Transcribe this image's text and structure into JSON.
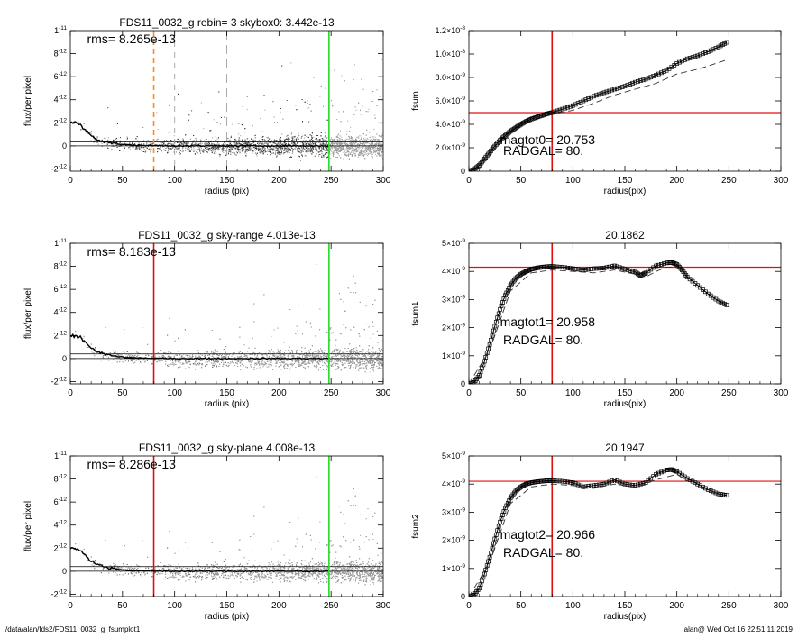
{
  "footer": {
    "path": "/data/alan/fds2/FDS11_0032_g_fsumplot1",
    "user_time": "alan@  Wed Oct 16 22:51:11 2019"
  },
  "colors": {
    "red": "#e01010",
    "green": "#22dd22",
    "orange": "#ff8c1a",
    "gray_dots": "#9a9a9a",
    "dark_dots": "#3a3a3a"
  },
  "chart_data": [
    {
      "id": "profile-1",
      "type": "scatter",
      "title": "FDS11_0032_g rebin= 3    skybox0:  3.442e-13",
      "xlabel": "radius (pix)",
      "ylabel": "flux/per pixel",
      "xlim": [
        0,
        300
      ],
      "ylim": [
        -2.2e-12,
        1e-11
      ],
      "xticks": [
        0,
        50,
        100,
        150,
        200,
        250,
        300
      ],
      "yticks": [
        {
          "v": -2e-12,
          "m": "-2",
          "e": "-12"
        },
        {
          "v": 0,
          "m": "0",
          "e": ""
        },
        {
          "v": 2e-12,
          "m": "2",
          "e": "-12"
        },
        {
          "v": 4e-12,
          "m": "4",
          "e": "-12"
        },
        {
          "v": 6e-12,
          "m": "6",
          "e": "-12"
        },
        {
          "v": 8e-12,
          "m": "8",
          "e": "-12"
        },
        {
          "v": 1e-11,
          "m": "1",
          "e": "-11"
        }
      ],
      "annotation": "rms= 8.265e-13",
      "hlines": [
        0,
        3.442e-13
      ],
      "vlines": [
        {
          "x": 80,
          "color": "#ff8c1a",
          "dash": "6,4",
          "width": 1.6
        },
        {
          "x": 100,
          "color": "#aaaaaa",
          "dash": "6,6",
          "width": 1
        },
        {
          "x": 150,
          "color": "#aaaaaa",
          "dash": "10,6",
          "width": 1
        },
        {
          "x": 248,
          "color": "#22dd22",
          "dash": "",
          "width": 1.6
        }
      ],
      "profile": [
        [
          0,
          2e-12
        ],
        [
          5,
          2e-12
        ],
        [
          10,
          1.8e-12
        ],
        [
          15,
          1.3e-12
        ],
        [
          20,
          9e-13
        ],
        [
          25,
          6e-13
        ],
        [
          30,
          4.5e-13
        ],
        [
          40,
          2.5e-13
        ],
        [
          50,
          1.2e-13
        ],
        [
          60,
          6e-14
        ],
        [
          80,
          2e-14
        ],
        [
          100,
          0
        ],
        [
          150,
          0
        ],
        [
          200,
          0
        ],
        [
          248,
          0
        ]
      ],
      "scatter_style": "mixed"
    },
    {
      "id": "fsum-0",
      "type": "line",
      "title": "",
      "xlabel": "radius(pix)",
      "ylabel": "fsum",
      "xlim": [
        0,
        300
      ],
      "ylim": [
        0,
        1.2e-08
      ],
      "xticks": [
        0,
        50,
        100,
        150,
        200,
        250,
        300
      ],
      "yticks": [
        {
          "v": 0,
          "m": "0",
          "e": ""
        },
        {
          "v": 2e-09,
          "m": "2.0×10",
          "e": "-9"
        },
        {
          "v": 4e-09,
          "m": "4.0×10",
          "e": "-9"
        },
        {
          "v": 6e-09,
          "m": "6.0×10",
          "e": "-9"
        },
        {
          "v": 8e-09,
          "m": "8.0×10",
          "e": "-9"
        },
        {
          "v": 1e-08,
          "m": "1.0×10",
          "e": "-8"
        },
        {
          "v": 1.2e-08,
          "m": "1.2×10",
          "e": "-8"
        }
      ],
      "annotations": [
        "magtot0=  20.753",
        "RADGAL=     80."
      ],
      "crosshair": {
        "x": 80,
        "y": 5e-09
      },
      "series": [
        {
          "style": "squares",
          "x": [
            0,
            5,
            10,
            15,
            20,
            25,
            30,
            35,
            40,
            45,
            50,
            55,
            60,
            65,
            70,
            75,
            80,
            90,
            100,
            110,
            120,
            130,
            140,
            150,
            160,
            170,
            180,
            190,
            200,
            210,
            220,
            230,
            240,
            248
          ],
          "y": [
            0,
            1.5e-10,
            5e-10,
            1.05e-09,
            1.6e-09,
            2.15e-09,
            2.65e-09,
            3.05e-09,
            3.4e-09,
            3.7e-09,
            4e-09,
            4.25e-09,
            4.45e-09,
            4.6e-09,
            4.75e-09,
            4.9e-09,
            5e-09,
            5.3e-09,
            5.6e-09,
            6e-09,
            6.4e-09,
            6.7e-09,
            7e-09,
            7.25e-09,
            7.6e-09,
            7.85e-09,
            8.2e-09,
            8.6e-09,
            9.2e-09,
            9.6e-09,
            9.85e-09,
            1.02e-08,
            1.06e-08,
            1.1e-08
          ]
        },
        {
          "style": "dashed",
          "x": [
            0,
            20,
            40,
            60,
            80,
            100,
            120,
            140,
            160,
            180,
            200,
            220,
            248
          ],
          "y": [
            0,
            1.5e-09,
            3.3e-09,
            4.3e-09,
            4.85e-09,
            5.2e-09,
            5.8e-09,
            6.5e-09,
            7e-09,
            7.5e-09,
            8.3e-09,
            8.7e-09,
            9.5e-09
          ]
        }
      ]
    },
    {
      "id": "profile-2",
      "type": "scatter",
      "title": "FDS11_0032_g sky-range  4.013e-13",
      "xlabel": "radius (pix)",
      "ylabel": "flux/per pixel",
      "xlim": [
        0,
        300
      ],
      "ylim": [
        -2.2e-12,
        1e-11
      ],
      "xticks": [
        0,
        50,
        100,
        150,
        200,
        250,
        300
      ],
      "yticks": [
        {
          "v": -2e-12,
          "m": "-2",
          "e": "-12"
        },
        {
          "v": 0,
          "m": "0",
          "e": ""
        },
        {
          "v": 2e-12,
          "m": "2",
          "e": "-12"
        },
        {
          "v": 4e-12,
          "m": "4",
          "e": "-12"
        },
        {
          "v": 6e-12,
          "m": "6",
          "e": "-12"
        },
        {
          "v": 8e-12,
          "m": "8",
          "e": "-12"
        },
        {
          "v": 1e-11,
          "m": "1",
          "e": "-11"
        }
      ],
      "annotation": "rms= 8.183e-13",
      "hlines": [
        0,
        4.013e-13
      ],
      "vlines": [
        {
          "x": 80,
          "color": "#e01010",
          "dash": "",
          "width": 1.6
        },
        {
          "x": 248,
          "color": "#22dd22",
          "dash": "",
          "width": 1.6
        }
      ],
      "profile": [
        [
          0,
          2e-12
        ],
        [
          5,
          2e-12
        ],
        [
          10,
          1.8e-12
        ],
        [
          15,
          1.3e-12
        ],
        [
          20,
          9e-13
        ],
        [
          25,
          6e-13
        ],
        [
          30,
          4.5e-13
        ],
        [
          40,
          2.5e-13
        ],
        [
          50,
          1.2e-13
        ],
        [
          60,
          6e-14
        ],
        [
          80,
          2e-14
        ],
        [
          100,
          0
        ],
        [
          150,
          0
        ],
        [
          200,
          0
        ],
        [
          248,
          0
        ]
      ],
      "scatter_style": "light"
    },
    {
      "id": "fsum-1",
      "type": "line",
      "title": "20.1862",
      "xlabel": "radius(pix)",
      "ylabel": "fsum1",
      "xlim": [
        0,
        300
      ],
      "ylim": [
        0,
        5e-09
      ],
      "xticks": [
        0,
        50,
        100,
        150,
        200,
        250,
        300
      ],
      "yticks": [
        {
          "v": 0,
          "m": "0",
          "e": ""
        },
        {
          "v": 1e-09,
          "m": "1×10",
          "e": "-9"
        },
        {
          "v": 2e-09,
          "m": "2×10",
          "e": "-9"
        },
        {
          "v": 3e-09,
          "m": "3×10",
          "e": "-9"
        },
        {
          "v": 4e-09,
          "m": "4×10",
          "e": "-9"
        },
        {
          "v": 5e-09,
          "m": "5×10",
          "e": "-9"
        }
      ],
      "annotations": [
        "magtot1=  20.958",
        "RADGAL=     80."
      ],
      "crosshair": {
        "x": 80,
        "y": 4.15e-09
      },
      "series": [
        {
          "style": "squares",
          "x": [
            0,
            5,
            10,
            15,
            20,
            25,
            30,
            35,
            40,
            45,
            50,
            55,
            60,
            65,
            70,
            75,
            80,
            90,
            100,
            110,
            120,
            130,
            140,
            150,
            160,
            165,
            170,
            180,
            190,
            195,
            200,
            205,
            210,
            220,
            230,
            240,
            248
          ],
          "y": [
            0,
            5e-11,
            3e-10,
            8e-10,
            1.4e-09,
            2.05e-09,
            2.65e-09,
            3.15e-09,
            3.5e-09,
            3.75e-09,
            3.9e-09,
            4e-09,
            4.08e-09,
            4.12e-09,
            4.15e-09,
            4.17e-09,
            4.18e-09,
            4.15e-09,
            4.1e-09,
            4.05e-09,
            4.1e-09,
            4.12e-09,
            4.2e-09,
            4.08e-09,
            3.98e-09,
            3.85e-09,
            3.95e-09,
            4.2e-09,
            4.3e-09,
            4.32e-09,
            4.25e-09,
            4.05e-09,
            3.8e-09,
            3.5e-09,
            3.2e-09,
            2.95e-09,
            2.8e-09
          ]
        },
        {
          "style": "dashed",
          "x": [
            0,
            20,
            40,
            60,
            80,
            100,
            120,
            140,
            160,
            170,
            180,
            190,
            200,
            210
          ],
          "y": [
            0,
            1.2e-09,
            3.3e-09,
            3.95e-09,
            4.05e-09,
            4e-09,
            3.95e-09,
            4.05e-09,
            3.9e-09,
            3.8e-09,
            4e-09,
            4.15e-09,
            4.15e-09,
            3.9e-09
          ]
        }
      ]
    },
    {
      "id": "profile-3",
      "type": "scatter",
      "title": "FDS11_0032_g sky-plane  4.008e-13",
      "xlabel": "radius (pix)",
      "ylabel": "flux/per pixel",
      "xlim": [
        0,
        300
      ],
      "ylim": [
        -2.2e-12,
        1e-11
      ],
      "xticks": [
        0,
        50,
        100,
        150,
        200,
        250,
        300
      ],
      "yticks": [
        {
          "v": -2e-12,
          "m": "-2",
          "e": "-12"
        },
        {
          "v": 0,
          "m": "0",
          "e": ""
        },
        {
          "v": 2e-12,
          "m": "2",
          "e": "-12"
        },
        {
          "v": 4e-12,
          "m": "4",
          "e": "-12"
        },
        {
          "v": 6e-12,
          "m": "6",
          "e": "-12"
        },
        {
          "v": 8e-12,
          "m": "8",
          "e": "-12"
        },
        {
          "v": 1e-11,
          "m": "1",
          "e": "-11"
        }
      ],
      "annotation": "rms= 8.286e-13",
      "hlines": [
        0,
        4.008e-13
      ],
      "vlines": [
        {
          "x": 80,
          "color": "#e01010",
          "dash": "",
          "width": 1.6
        },
        {
          "x": 248,
          "color": "#22dd22",
          "dash": "",
          "width": 1.6
        }
      ],
      "profile": [
        [
          0,
          2e-12
        ],
        [
          5,
          2e-12
        ],
        [
          10,
          1.8e-12
        ],
        [
          15,
          1.3e-12
        ],
        [
          20,
          9e-13
        ],
        [
          25,
          6e-13
        ],
        [
          30,
          4.5e-13
        ],
        [
          40,
          2.5e-13
        ],
        [
          50,
          1.2e-13
        ],
        [
          60,
          6e-14
        ],
        [
          80,
          2e-14
        ],
        [
          100,
          0
        ],
        [
          150,
          0
        ],
        [
          200,
          0
        ],
        [
          248,
          0
        ]
      ],
      "scatter_style": "light"
    },
    {
      "id": "fsum-2",
      "type": "line",
      "title": "20.1947",
      "xlabel": "radius(pix)",
      "ylabel": "fsum2",
      "xlim": [
        0,
        300
      ],
      "ylim": [
        0,
        5e-09
      ],
      "xticks": [
        0,
        50,
        100,
        150,
        200,
        250,
        300
      ],
      "yticks": [
        {
          "v": 0,
          "m": "0",
          "e": ""
        },
        {
          "v": 1e-09,
          "m": "1×10",
          "e": "-9"
        },
        {
          "v": 2e-09,
          "m": "2×10",
          "e": "-9"
        },
        {
          "v": 3e-09,
          "m": "3×10",
          "e": "-9"
        },
        {
          "v": 4e-09,
          "m": "4×10",
          "e": "-9"
        },
        {
          "v": 5e-09,
          "m": "5×10",
          "e": "-9"
        }
      ],
      "annotations": [
        "magtot2=  20.966",
        "RADGAL=     80."
      ],
      "crosshair": {
        "x": 80,
        "y": 4.1e-09
      },
      "series": [
        {
          "style": "squares",
          "x": [
            0,
            5,
            10,
            15,
            20,
            25,
            30,
            35,
            40,
            45,
            50,
            55,
            60,
            65,
            70,
            75,
            80,
            90,
            100,
            110,
            120,
            130,
            140,
            150,
            160,
            170,
            180,
            190,
            195,
            200,
            210,
            220,
            230,
            240,
            248
          ],
          "y": [
            0,
            5e-11,
            3e-10,
            8e-10,
            1.4e-09,
            2.05e-09,
            2.65e-09,
            3.15e-09,
            3.5e-09,
            3.75e-09,
            3.9e-09,
            4e-09,
            4.05e-09,
            4.08e-09,
            4.1e-09,
            4.12e-09,
            4.12e-09,
            4.1e-09,
            4.05e-09,
            3.9e-09,
            3.95e-09,
            4e-09,
            4.15e-09,
            4e-09,
            3.95e-09,
            4.05e-09,
            4.35e-09,
            4.5e-09,
            4.52e-09,
            4.45e-09,
            4.2e-09,
            4e-09,
            3.8e-09,
            3.65e-09,
            3.6e-09
          ]
        },
        {
          "style": "dashed",
          "x": [
            0,
            20,
            40,
            60,
            80,
            100,
            120,
            140,
            160,
            180,
            200,
            210
          ],
          "y": [
            0,
            1.2e-09,
            3.3e-09,
            3.9e-09,
            4e-09,
            3.95e-09,
            3.85e-09,
            4e-09,
            3.9e-09,
            4.15e-09,
            4.35e-09,
            4.1e-09
          ]
        }
      ]
    }
  ]
}
